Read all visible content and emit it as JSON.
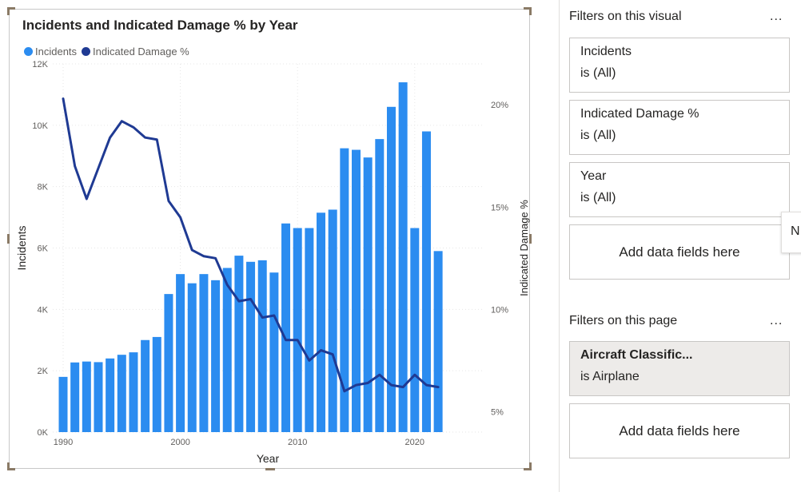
{
  "chart_data": {
    "type": "bar+line",
    "title": "Incidents and Indicated Damage % by Year",
    "xlabel": "Year",
    "ylabel": "Incidents",
    "y2label": "Indicated Damage %",
    "x_ticks": [
      "1990",
      "2000",
      "2010",
      "2020"
    ],
    "y_ticks": [
      "0K",
      "2K",
      "4K",
      "6K",
      "8K",
      "10K",
      "12K"
    ],
    "y2_ticks": [
      "5%",
      "10%",
      "15%",
      "20%"
    ],
    "ylim": [
      0,
      12000
    ],
    "y2lim": [
      4.0,
      22.0
    ],
    "legend_position": "top-left",
    "grid": true,
    "series": [
      {
        "name": "Incidents",
        "type": "bar",
        "color": "#2b8cf0",
        "x": [
          1990,
          1991,
          1992,
          1993,
          1994,
          1995,
          1996,
          1997,
          1998,
          1999,
          2000,
          2001,
          2002,
          2003,
          2004,
          2005,
          2006,
          2007,
          2008,
          2009,
          2010,
          2011,
          2012,
          2013,
          2014,
          2015,
          2016,
          2017,
          2018,
          2019,
          2020,
          2021,
          2022
        ],
        "values": [
          1800,
          2270,
          2300,
          2280,
          2400,
          2520,
          2600,
          3000,
          3100,
          4500,
          5150,
          4850,
          5150,
          4950,
          5350,
          5750,
          5550,
          5600,
          5200,
          6800,
          6650,
          6650,
          7150,
          7250,
          9250,
          9200,
          8950,
          9550,
          10600,
          11400,
          6650,
          9800,
          5900
        ]
      },
      {
        "name": "Indicated Damage %",
        "type": "line",
        "color": "#1f3a93",
        "x": [
          1990,
          1991,
          1992,
          1993,
          1994,
          1995,
          1996,
          1997,
          1998,
          1999,
          2000,
          2001,
          2002,
          2003,
          2004,
          2005,
          2006,
          2007,
          2008,
          2009,
          2010,
          2011,
          2012,
          2013,
          2014,
          2015,
          2016,
          2017,
          2018,
          2019,
          2020,
          2021,
          2022
        ],
        "values": [
          20.3,
          17.0,
          15.4,
          16.9,
          18.4,
          19.2,
          18.9,
          18.4,
          18.3,
          15.3,
          14.5,
          12.9,
          12.6,
          12.5,
          11.2,
          10.4,
          10.5,
          9.6,
          9.7,
          8.5,
          8.5,
          7.5,
          8.0,
          7.8,
          6.0,
          6.3,
          6.4,
          6.8,
          6.3,
          6.2,
          6.8,
          6.3,
          6.2
        ]
      }
    ]
  },
  "filters_pane": {
    "visual_heading": "Filters on this visual",
    "more_label": "...",
    "visual_filters": [
      {
        "field": "Incidents",
        "state": "is (All)"
      },
      {
        "field": "Indicated Damage %",
        "state": "is (All)"
      },
      {
        "field": "Year",
        "state": "is (All)"
      }
    ],
    "add_label": "Add data fields here",
    "page_heading": "Filters on this page",
    "page_filters": [
      {
        "field": "Aircraft Classific...",
        "state": "is Airplane"
      }
    ],
    "collapse_label": "N"
  }
}
